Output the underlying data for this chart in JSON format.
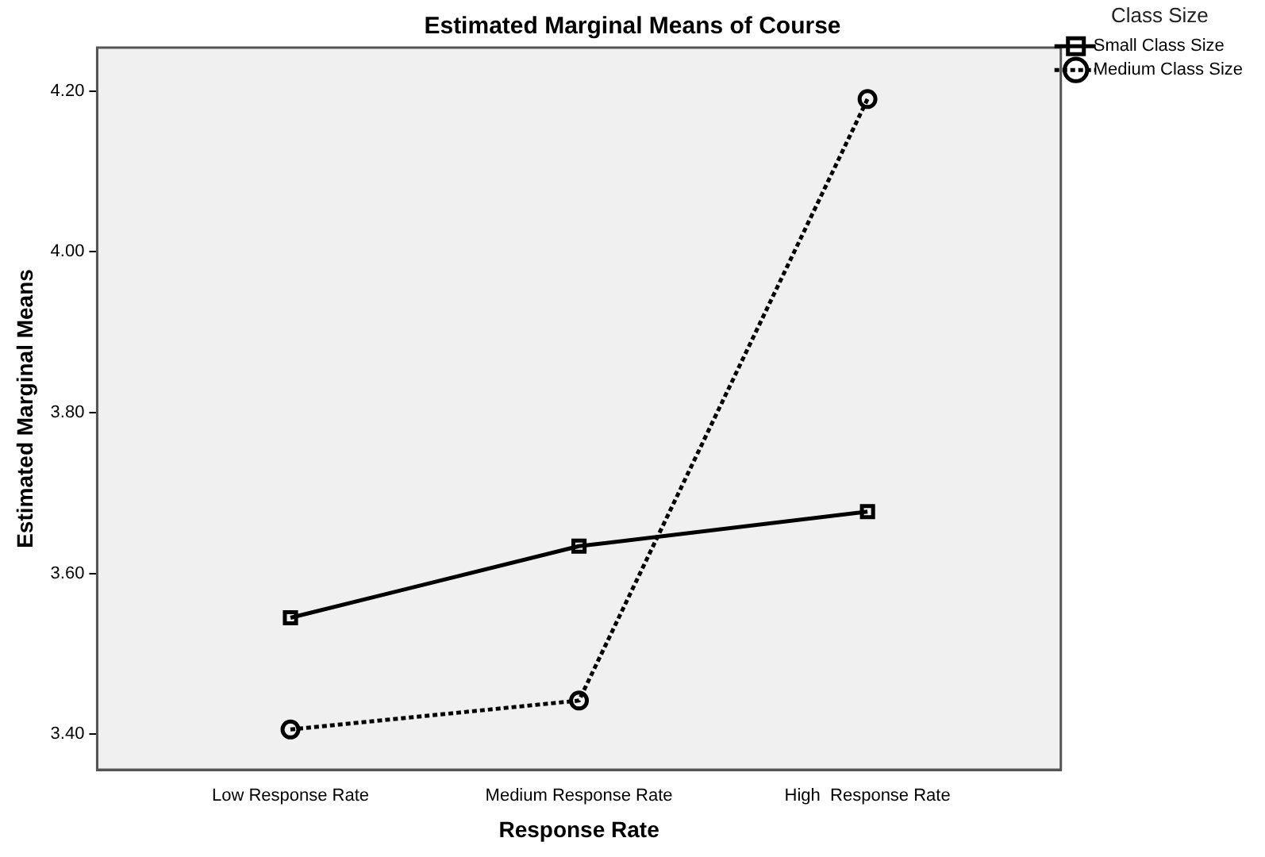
{
  "chart_data": {
    "type": "line",
    "title": "Estimated Marginal Means of Course",
    "xlabel": "Response Rate",
    "ylabel": "Estimated Marginal Means",
    "legend_title": "Class Size",
    "legend": "top right",
    "grid": false,
    "categories": [
      "Low Response Rate",
      "Medium Response Rate",
      "High  Response Rate"
    ],
    "ylim": [
      3.356,
      4.254
    ],
    "yticks": [
      {
        "value": 3.4,
        "label": "3.40"
      },
      {
        "value": 3.6,
        "label": "3.60"
      },
      {
        "value": 3.8,
        "label": "3.80"
      },
      {
        "value": 4.0,
        "label": "4.00"
      },
      {
        "value": 4.2,
        "label": "4.20"
      }
    ],
    "series": [
      {
        "name": "Small Class Size",
        "color": "#000000",
        "marker": "square",
        "line_style": "solid",
        "values": [
          3.545,
          3.634,
          3.677
        ]
      },
      {
        "name": "Medium Class Size",
        "color": "#000000",
        "marker": "circle",
        "line_style": "dotted",
        "values": [
          3.406,
          3.442,
          4.19
        ]
      }
    ]
  }
}
